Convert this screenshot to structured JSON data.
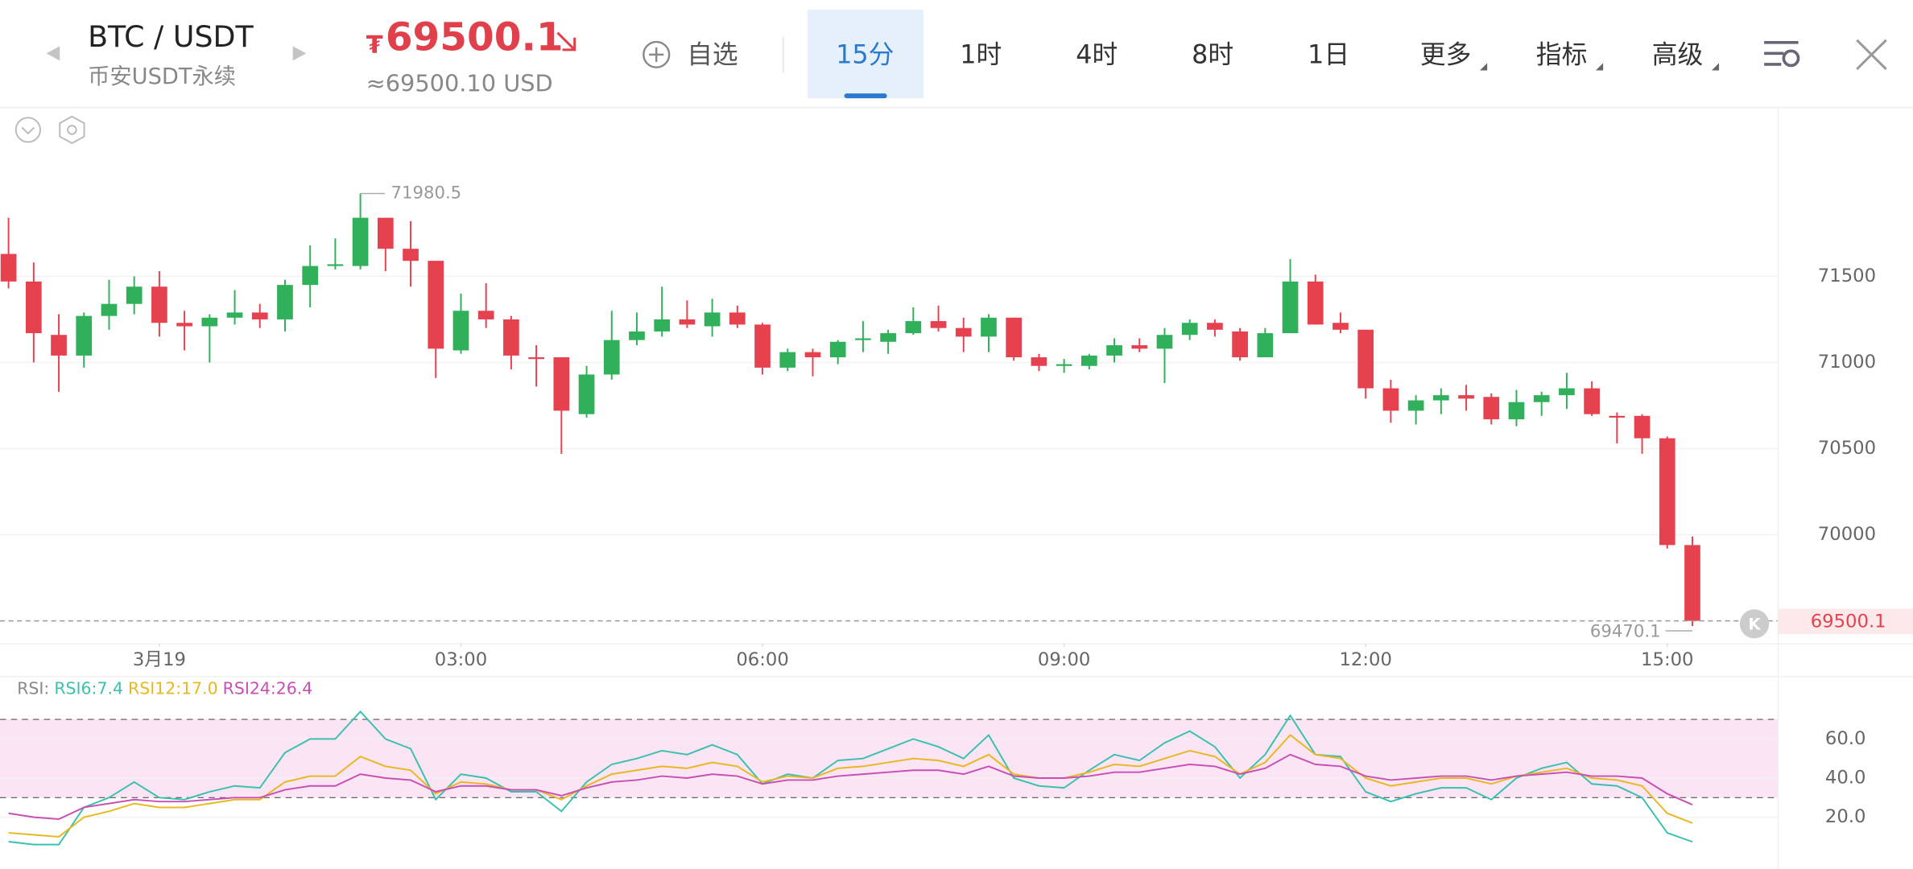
{
  "header": {
    "symbol": "BTC / USDT",
    "market": "币安USDT永续",
    "price_symbol": "₮",
    "price": "69500.1",
    "price_usd": "≈69500.10 USD",
    "watchlist": "自选",
    "tabs": [
      "15分",
      "1时",
      "4时",
      "8时",
      "1日",
      "更多",
      "指标",
      "高级"
    ],
    "active_tab": 0
  },
  "chart_controls": {
    "k": "K"
  },
  "chart_data": [
    {
      "type": "candlestick",
      "up_color": "#30b05a",
      "down_color": "#e5414f",
      "xlim": [
        -0.34,
        70.39
      ],
      "xticks": [
        {
          "value": 6,
          "label": "3月19"
        },
        {
          "value": 18,
          "label": "03:00"
        },
        {
          "value": 30,
          "label": "06:00"
        },
        {
          "value": 42,
          "label": "09:00"
        },
        {
          "value": 54,
          "label": "12:00"
        },
        {
          "value": 66,
          "label": "15:00"
        }
      ],
      "ylim": [
        69370,
        72470
      ],
      "yticks": [
        70000,
        70500,
        71000,
        71500
      ],
      "grid": true,
      "open": [
        71630,
        71470,
        71160,
        71040,
        71270,
        71340,
        71440,
        71230,
        71210,
        71260,
        71290,
        71250,
        71450,
        71560,
        71560,
        71840,
        71660,
        71590,
        71070,
        71300,
        71250,
        71030,
        71030,
        70700,
        70930,
        71130,
        71180,
        71250,
        71210,
        71290,
        71220,
        70970,
        71060,
        71030,
        71130,
        71120,
        71170,
        71240,
        71200,
        71150,
        71260,
        71030,
        70980,
        70980,
        71040,
        71100,
        71080,
        71160,
        71230,
        71180,
        71030,
        71170,
        71470,
        71230,
        71190,
        70850,
        70720,
        70780,
        70810,
        70800,
        70670,
        70770,
        70810,
        70850,
        70690,
        70690,
        70560,
        69940
      ],
      "high": [
        71840,
        71580,
        71280,
        71290,
        71480,
        71500,
        71530,
        71300,
        71280,
        71420,
        71340,
        71480,
        71680,
        71720,
        71980.5,
        71840,
        71820,
        71590,
        71400,
        71460,
        71270,
        71100,
        71030,
        70980,
        71300,
        71290,
        71440,
        71360,
        71370,
        71330,
        71230,
        71080,
        71080,
        71130,
        71240,
        71190,
        71320,
        71330,
        71260,
        71280,
        71260,
        71050,
        71020,
        71050,
        71140,
        71140,
        71200,
        71250,
        71250,
        71200,
        71200,
        71600,
        71510,
        71290,
        71190,
        70900,
        70810,
        70850,
        70870,
        70820,
        70840,
        70830,
        70940,
        70890,
        70710,
        70700,
        70570,
        69990
      ],
      "low": [
        71430,
        71000,
        70830,
        70970,
        71190,
        71280,
        71150,
        71070,
        71000,
        71220,
        71200,
        71180,
        71320,
        71540,
        71540,
        71530,
        71440,
        70910,
        71050,
        71200,
        70960,
        70860,
        70470,
        70680,
        70900,
        71100,
        71150,
        71200,
        71150,
        71200,
        70930,
        70950,
        70920,
        70990,
        71060,
        71050,
        71160,
        71180,
        71060,
        71060,
        71010,
        70950,
        70940,
        70960,
        71000,
        71060,
        70880,
        71130,
        71150,
        71010,
        71030,
        71170,
        71220,
        71170,
        70790,
        70650,
        70640,
        70700,
        70720,
        70640,
        70630,
        70690,
        70730,
        70690,
        70530,
        70470,
        69920,
        69470.1
      ],
      "close": [
        71470,
        71170,
        71040,
        71270,
        71340,
        71440,
        71230,
        71210,
        71260,
        71290,
        71250,
        71450,
        71560,
        71570,
        71840,
        71660,
        71590,
        71080,
        71300,
        71250,
        71040,
        71020,
        70720,
        70930,
        71130,
        71180,
        71250,
        71220,
        71290,
        71220,
        70970,
        71060,
        71030,
        71120,
        71140,
        71170,
        71240,
        71200,
        71150,
        71260,
        71030,
        70980,
        70990,
        71040,
        71100,
        71080,
        71160,
        71230,
        71190,
        71030,
        71170,
        71470,
        71220,
        71190,
        70850,
        70720,
        70780,
        70810,
        70790,
        70670,
        70770,
        70810,
        70850,
        70700,
        70680,
        70560,
        69940,
        69500
      ],
      "annotations": [
        {
          "x": 14,
          "y": 71980.5,
          "label": "71980.5",
          "side": "right"
        },
        {
          "x": 67,
          "y": 69470.1,
          "label": "69470.1",
          "side": "left"
        }
      ],
      "last_price": {
        "value": 69500.1,
        "label": "69500.1"
      }
    },
    {
      "type": "line",
      "title": "RSI:",
      "xlim": [
        -0.34,
        70.39
      ],
      "ylim": [
        -4,
        81
      ],
      "yticks": [
        {
          "value": 20,
          "label": "20.0"
        },
        {
          "value": 40,
          "label": "40.0"
        },
        {
          "value": 60,
          "label": "60.0"
        }
      ],
      "band": [
        30,
        70
      ],
      "band_color": "#fbe4f4",
      "series": [
        {
          "name": "RSI6:7.4",
          "color": "#3cc0ae",
          "values": [
            7.5,
            6,
            6,
            25,
            30,
            38,
            30,
            29,
            33,
            36,
            35,
            53,
            60,
            60,
            74,
            60,
            55,
            29,
            42,
            40,
            33,
            33,
            23,
            38,
            47,
            50,
            54,
            52,
            57,
            52,
            37,
            42,
            40,
            49,
            50,
            55,
            60,
            56,
            50,
            62,
            40,
            36,
            35,
            44,
            52,
            49,
            58,
            64,
            56,
            40,
            52,
            72,
            52,
            51,
            33,
            28,
            32,
            35,
            35,
            29,
            40,
            45,
            48,
            37,
            36,
            30,
            12,
            7.4
          ]
        },
        {
          "name": "RSI12:17.0",
          "color": "#e8b820",
          "values": [
            12,
            11,
            10,
            20,
            23,
            27,
            25,
            25,
            27,
            29,
            29,
            38,
            41,
            41,
            51,
            46,
            44,
            32,
            38,
            37,
            34,
            34,
            29,
            36,
            42,
            44,
            46,
            45,
            48,
            46,
            38,
            41,
            40,
            45,
            46,
            48,
            50,
            49,
            46,
            52,
            42,
            40,
            40,
            43,
            47,
            46,
            50,
            54,
            51,
            42,
            48,
            62,
            52,
            50,
            40,
            36,
            38,
            40,
            40,
            37,
            41,
            43,
            45,
            40,
            39,
            36,
            22,
            17.0
          ]
        },
        {
          "name": "RSI24:26.4",
          "color": "#c84fb4",
          "values": [
            22,
            20,
            19,
            25,
            27,
            29,
            28,
            28,
            29,
            30,
            30,
            34,
            36,
            36,
            42,
            40,
            39,
            33,
            36,
            36,
            34,
            34,
            31,
            35,
            38,
            39,
            41,
            40,
            42,
            41,
            37,
            39,
            39,
            41,
            42,
            43,
            44,
            44,
            42,
            46,
            41,
            40,
            40,
            41,
            43,
            43,
            45,
            47,
            46,
            42,
            45,
            52,
            47,
            46,
            41,
            39,
            40,
            41,
            41,
            39,
            41,
            42,
            43,
            41,
            41,
            40,
            32,
            26.4
          ]
        }
      ]
    }
  ]
}
